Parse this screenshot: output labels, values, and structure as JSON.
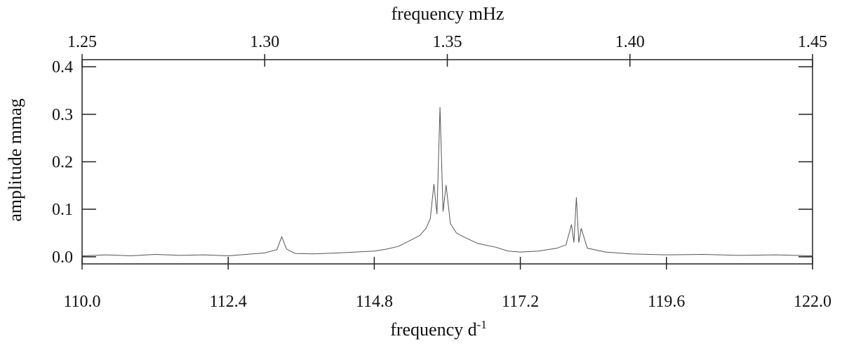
{
  "chart_data": {
    "type": "line",
    "title": "",
    "xlabel": "frequency d",
    "xlabel_superscript": "-1",
    "x2label": "frequency mHz",
    "ylabel": "amplitude mmag",
    "xlim": [
      110.0,
      122.0
    ],
    "x2lim": [
      1.25,
      1.45
    ],
    "ylim": [
      -0.015,
      0.415
    ],
    "x_ticks": [
      "110.0",
      "112.4",
      "114.8",
      "117.2",
      "119.6",
      "122.0"
    ],
    "x2_ticks": [
      "1.25",
      "1.30",
      "1.35",
      "1.40",
      "1.45"
    ],
    "y_ticks": [
      "0.0",
      "0.1",
      "0.2",
      "0.3",
      "0.4"
    ],
    "grid": false,
    "line_color": "#555555",
    "peaks": [
      {
        "x": 113.28,
        "y": 0.042
      },
      {
        "x": 115.78,
        "y": 0.153
      },
      {
        "x": 115.88,
        "y": 0.315
      },
      {
        "x": 115.98,
        "y": 0.151
      },
      {
        "x": 118.04,
        "y": 0.068
      },
      {
        "x": 118.12,
        "y": 0.125
      },
      {
        "x": 118.2,
        "y": 0.06
      }
    ],
    "series": [
      {
        "values": [
          [
            110.0,
            0.002
          ],
          [
            110.4,
            0.004
          ],
          [
            110.8,
            0.002
          ],
          [
            111.2,
            0.005
          ],
          [
            111.6,
            0.003
          ],
          [
            112.0,
            0.004
          ],
          [
            112.4,
            0.002
          ],
          [
            112.8,
            0.006
          ],
          [
            113.0,
            0.008
          ],
          [
            113.2,
            0.015
          ],
          [
            113.28,
            0.042
          ],
          [
            113.36,
            0.016
          ],
          [
            113.5,
            0.007
          ],
          [
            113.8,
            0.006
          ],
          [
            114.2,
            0.008
          ],
          [
            114.5,
            0.01
          ],
          [
            114.8,
            0.012
          ],
          [
            115.0,
            0.016
          ],
          [
            115.2,
            0.022
          ],
          [
            115.4,
            0.035
          ],
          [
            115.55,
            0.045
          ],
          [
            115.65,
            0.06
          ],
          [
            115.72,
            0.08
          ],
          [
            115.78,
            0.153
          ],
          [
            115.83,
            0.09
          ],
          [
            115.88,
            0.315
          ],
          [
            115.93,
            0.095
          ],
          [
            115.98,
            0.151
          ],
          [
            116.05,
            0.07
          ],
          [
            116.15,
            0.05
          ],
          [
            116.3,
            0.04
          ],
          [
            116.5,
            0.028
          ],
          [
            116.8,
            0.02
          ],
          [
            117.0,
            0.012
          ],
          [
            117.2,
            0.01
          ],
          [
            117.5,
            0.012
          ],
          [
            117.8,
            0.018
          ],
          [
            117.95,
            0.025
          ],
          [
            118.04,
            0.068
          ],
          [
            118.08,
            0.03
          ],
          [
            118.12,
            0.125
          ],
          [
            118.16,
            0.03
          ],
          [
            118.2,
            0.06
          ],
          [
            118.3,
            0.018
          ],
          [
            118.6,
            0.01
          ],
          [
            119.0,
            0.006
          ],
          [
            119.6,
            0.004
          ],
          [
            120.2,
            0.005
          ],
          [
            120.8,
            0.003
          ],
          [
            121.4,
            0.004
          ],
          [
            122.0,
            0.002
          ]
        ]
      }
    ]
  }
}
